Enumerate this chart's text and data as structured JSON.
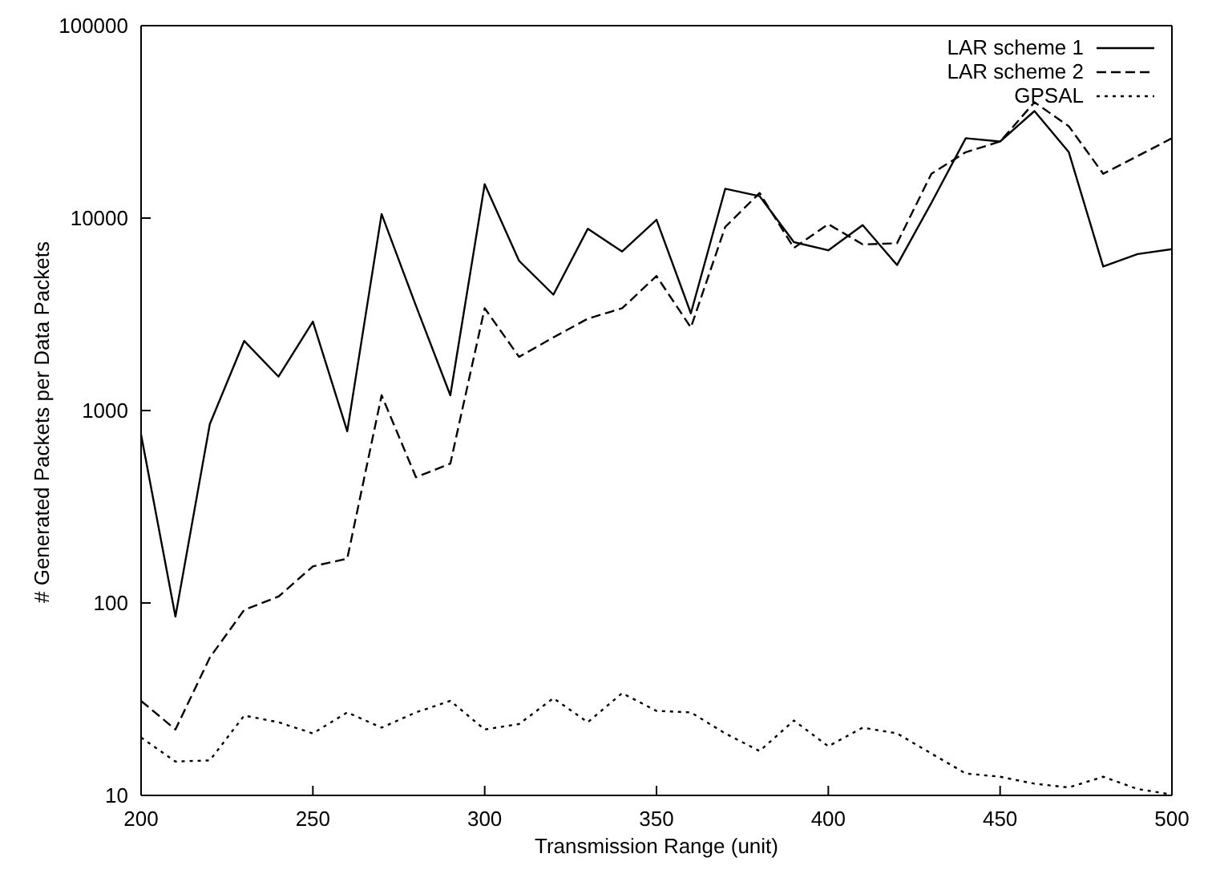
{
  "chart_data": {
    "type": "line",
    "xlabel": "Transmission Range (unit)",
    "ylabel": "# Generated Packets per Data Packets",
    "x": [
      200,
      210,
      220,
      230,
      240,
      250,
      260,
      270,
      280,
      290,
      300,
      310,
      320,
      330,
      340,
      350,
      360,
      370,
      380,
      390,
      400,
      410,
      420,
      430,
      440,
      450,
      460,
      470,
      480,
      490,
      500
    ],
    "series": [
      {
        "name": "LAR scheme 1",
        "color": "#000000",
        "line_style": "solid",
        "values": [
          750,
          85,
          850,
          2300,
          1500,
          2900,
          780,
          10500,
          3500,
          1200,
          15000,
          6000,
          4000,
          8800,
          6700,
          9800,
          3200,
          14200,
          13000,
          7500,
          6800,
          9200,
          5700,
          12000,
          26000,
          25000,
          36000,
          22000,
          5600,
          6500,
          6900
        ]
      },
      {
        "name": "LAR scheme 2",
        "color": "#000000",
        "line_style": "dashed",
        "values": [
          31,
          22,
          52,
          92,
          108,
          155,
          170,
          1200,
          450,
          530,
          3400,
          1900,
          2400,
          3000,
          3400,
          5000,
          2700,
          9000,
          13500,
          7000,
          9300,
          7300,
          7400,
          17000,
          22000,
          25000,
          40000,
          30000,
          17000,
          21000,
          26000
        ]
      },
      {
        "name": "GPSAL",
        "color": "#000000",
        "line_style": "dotted",
        "values": [
          20,
          15,
          15.2,
          26,
          24,
          21,
          27,
          22.5,
          27,
          31,
          22,
          23.5,
          32,
          24,
          34,
          27.5,
          27,
          21,
          17,
          24.5,
          18,
          22.5,
          21,
          16.5,
          13,
          12.5,
          11.5,
          11,
          12.5,
          10.8,
          10.1
        ]
      }
    ],
    "xlim": [
      200,
      500
    ],
    "xticks": [
      200,
      250,
      300,
      350,
      400,
      450,
      500
    ],
    "ylim": [
      10,
      100000
    ],
    "yticks": [
      10,
      100,
      1000,
      10000,
      100000
    ],
    "log": "y",
    "grid": false,
    "legend": "top right",
    "marker": "none"
  }
}
